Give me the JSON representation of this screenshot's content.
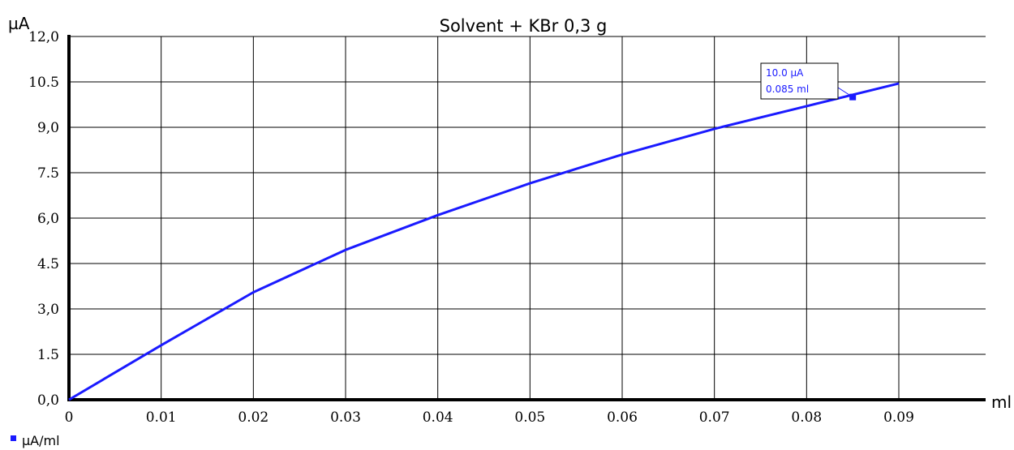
{
  "chart_data": {
    "type": "line",
    "title": "Solvent + KBr 0,3 g",
    "ylabel": "µA",
    "xlabel": "ml",
    "ylim": [
      0,
      12
    ],
    "xlim": [
      0,
      0.1
    ],
    "grid": true,
    "legend_position": "bottom-left",
    "yticks": [
      {
        "value": 0,
        "label": "0,0"
      },
      {
        "value": 1.5,
        "label": "1.5"
      },
      {
        "value": 3,
        "label": "3,0"
      },
      {
        "value": 4.5,
        "label": "4.5"
      },
      {
        "value": 6,
        "label": "6,0"
      },
      {
        "value": 7.5,
        "label": "7.5"
      },
      {
        "value": 9,
        "label": "9,0"
      },
      {
        "value": 10.5,
        "label": "10.5"
      },
      {
        "value": 12,
        "label": "12,0"
      }
    ],
    "xticks": [
      {
        "value": 0,
        "label": "0"
      },
      {
        "value": 0.01,
        "label": "0.01"
      },
      {
        "value": 0.02,
        "label": "0.02"
      },
      {
        "value": 0.03,
        "label": "0.03"
      },
      {
        "value": 0.04,
        "label": "0.04"
      },
      {
        "value": 0.05,
        "label": "0.05"
      },
      {
        "value": 0.06,
        "label": "0.06"
      },
      {
        "value": 0.07,
        "label": "0.07"
      },
      {
        "value": 0.08,
        "label": "0.08"
      },
      {
        "value": 0.09,
        "label": "0.09"
      }
    ],
    "series": [
      {
        "name": "µA/ml",
        "color": "#1a1aff",
        "x": [
          0,
          0.01,
          0.02,
          0.03,
          0.04,
          0.05,
          0.06,
          0.07,
          0.08,
          0.09
        ],
        "y": [
          0,
          1.8,
          3.55,
          4.95,
          6.1,
          7.15,
          8.1,
          8.95,
          9.7,
          10.45
        ]
      }
    ],
    "annotation": {
      "x": 0.085,
      "y": 10.0,
      "lines": [
        "10.0 µA",
        "0.085 ml"
      ],
      "color": "#1a1aff"
    }
  }
}
